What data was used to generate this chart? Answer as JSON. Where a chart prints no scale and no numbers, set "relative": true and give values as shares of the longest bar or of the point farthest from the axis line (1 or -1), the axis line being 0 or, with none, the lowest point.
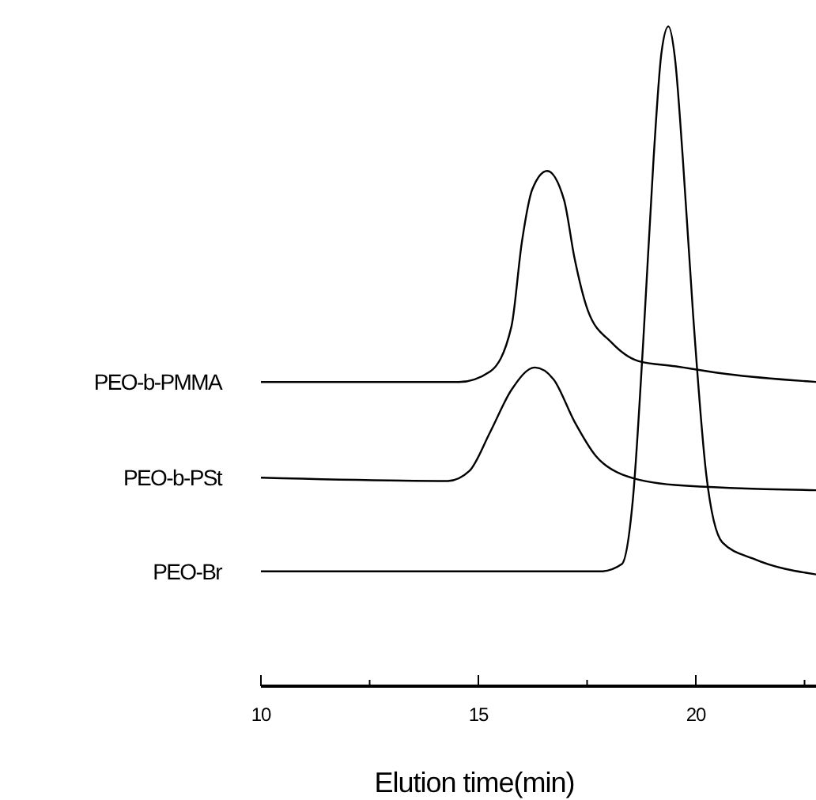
{
  "chart_data": {
    "type": "line",
    "relative": true,
    "xlabel": "Elution time(min)",
    "xlim": [
      10,
      22.8
    ],
    "xticks": [
      10,
      {
        "value": 12.5,
        "label": null
      },
      15,
      {
        "value": 17.5,
        "label": null
      },
      20,
      {
        "value": 22.5,
        "label": null
      }
    ],
    "legend": false,
    "grid": false,
    "tick_labels": "x",
    "series": [
      {
        "name": "PEO-b-PMMA",
        "color": "#000000",
        "x": [
          10,
          14.55,
          15.27,
          15.76,
          16.0,
          16.24,
          16.58,
          16.97,
          17.21,
          17.52,
          18.06,
          18.67,
          19.52,
          20.73,
          22.8
        ],
        "values": [
          0.461,
          0.461,
          0.477,
          0.545,
          0.673,
          0.753,
          0.781,
          0.737,
          0.649,
          0.569,
          0.521,
          0.493,
          0.485,
          0.473,
          0.461
        ]
      },
      {
        "name": "PEO-b-PSt",
        "color": "#000000",
        "x": [
          10,
          14.3,
          14.79,
          15.27,
          15.76,
          16.3,
          16.73,
          17.21,
          17.7,
          18.3,
          19.52,
          22.8
        ],
        "values": [
          0.316,
          0.311,
          0.326,
          0.385,
          0.449,
          0.483,
          0.465,
          0.401,
          0.349,
          0.321,
          0.305,
          0.297
        ]
      },
      {
        "name": "PEO-Br",
        "color": "#000000",
        "x": [
          10,
          17.82,
          18.3,
          18.55,
          18.79,
          19.03,
          19.21,
          19.37,
          19.52,
          19.7,
          19.94,
          20.24,
          20.61,
          21.33,
          22.8
        ],
        "values": [
          0.174,
          0.174,
          0.185,
          0.281,
          0.521,
          0.801,
          0.96,
          1.0,
          0.952,
          0.801,
          0.561,
          0.321,
          0.218,
          0.193,
          0.169
        ]
      }
    ]
  }
}
